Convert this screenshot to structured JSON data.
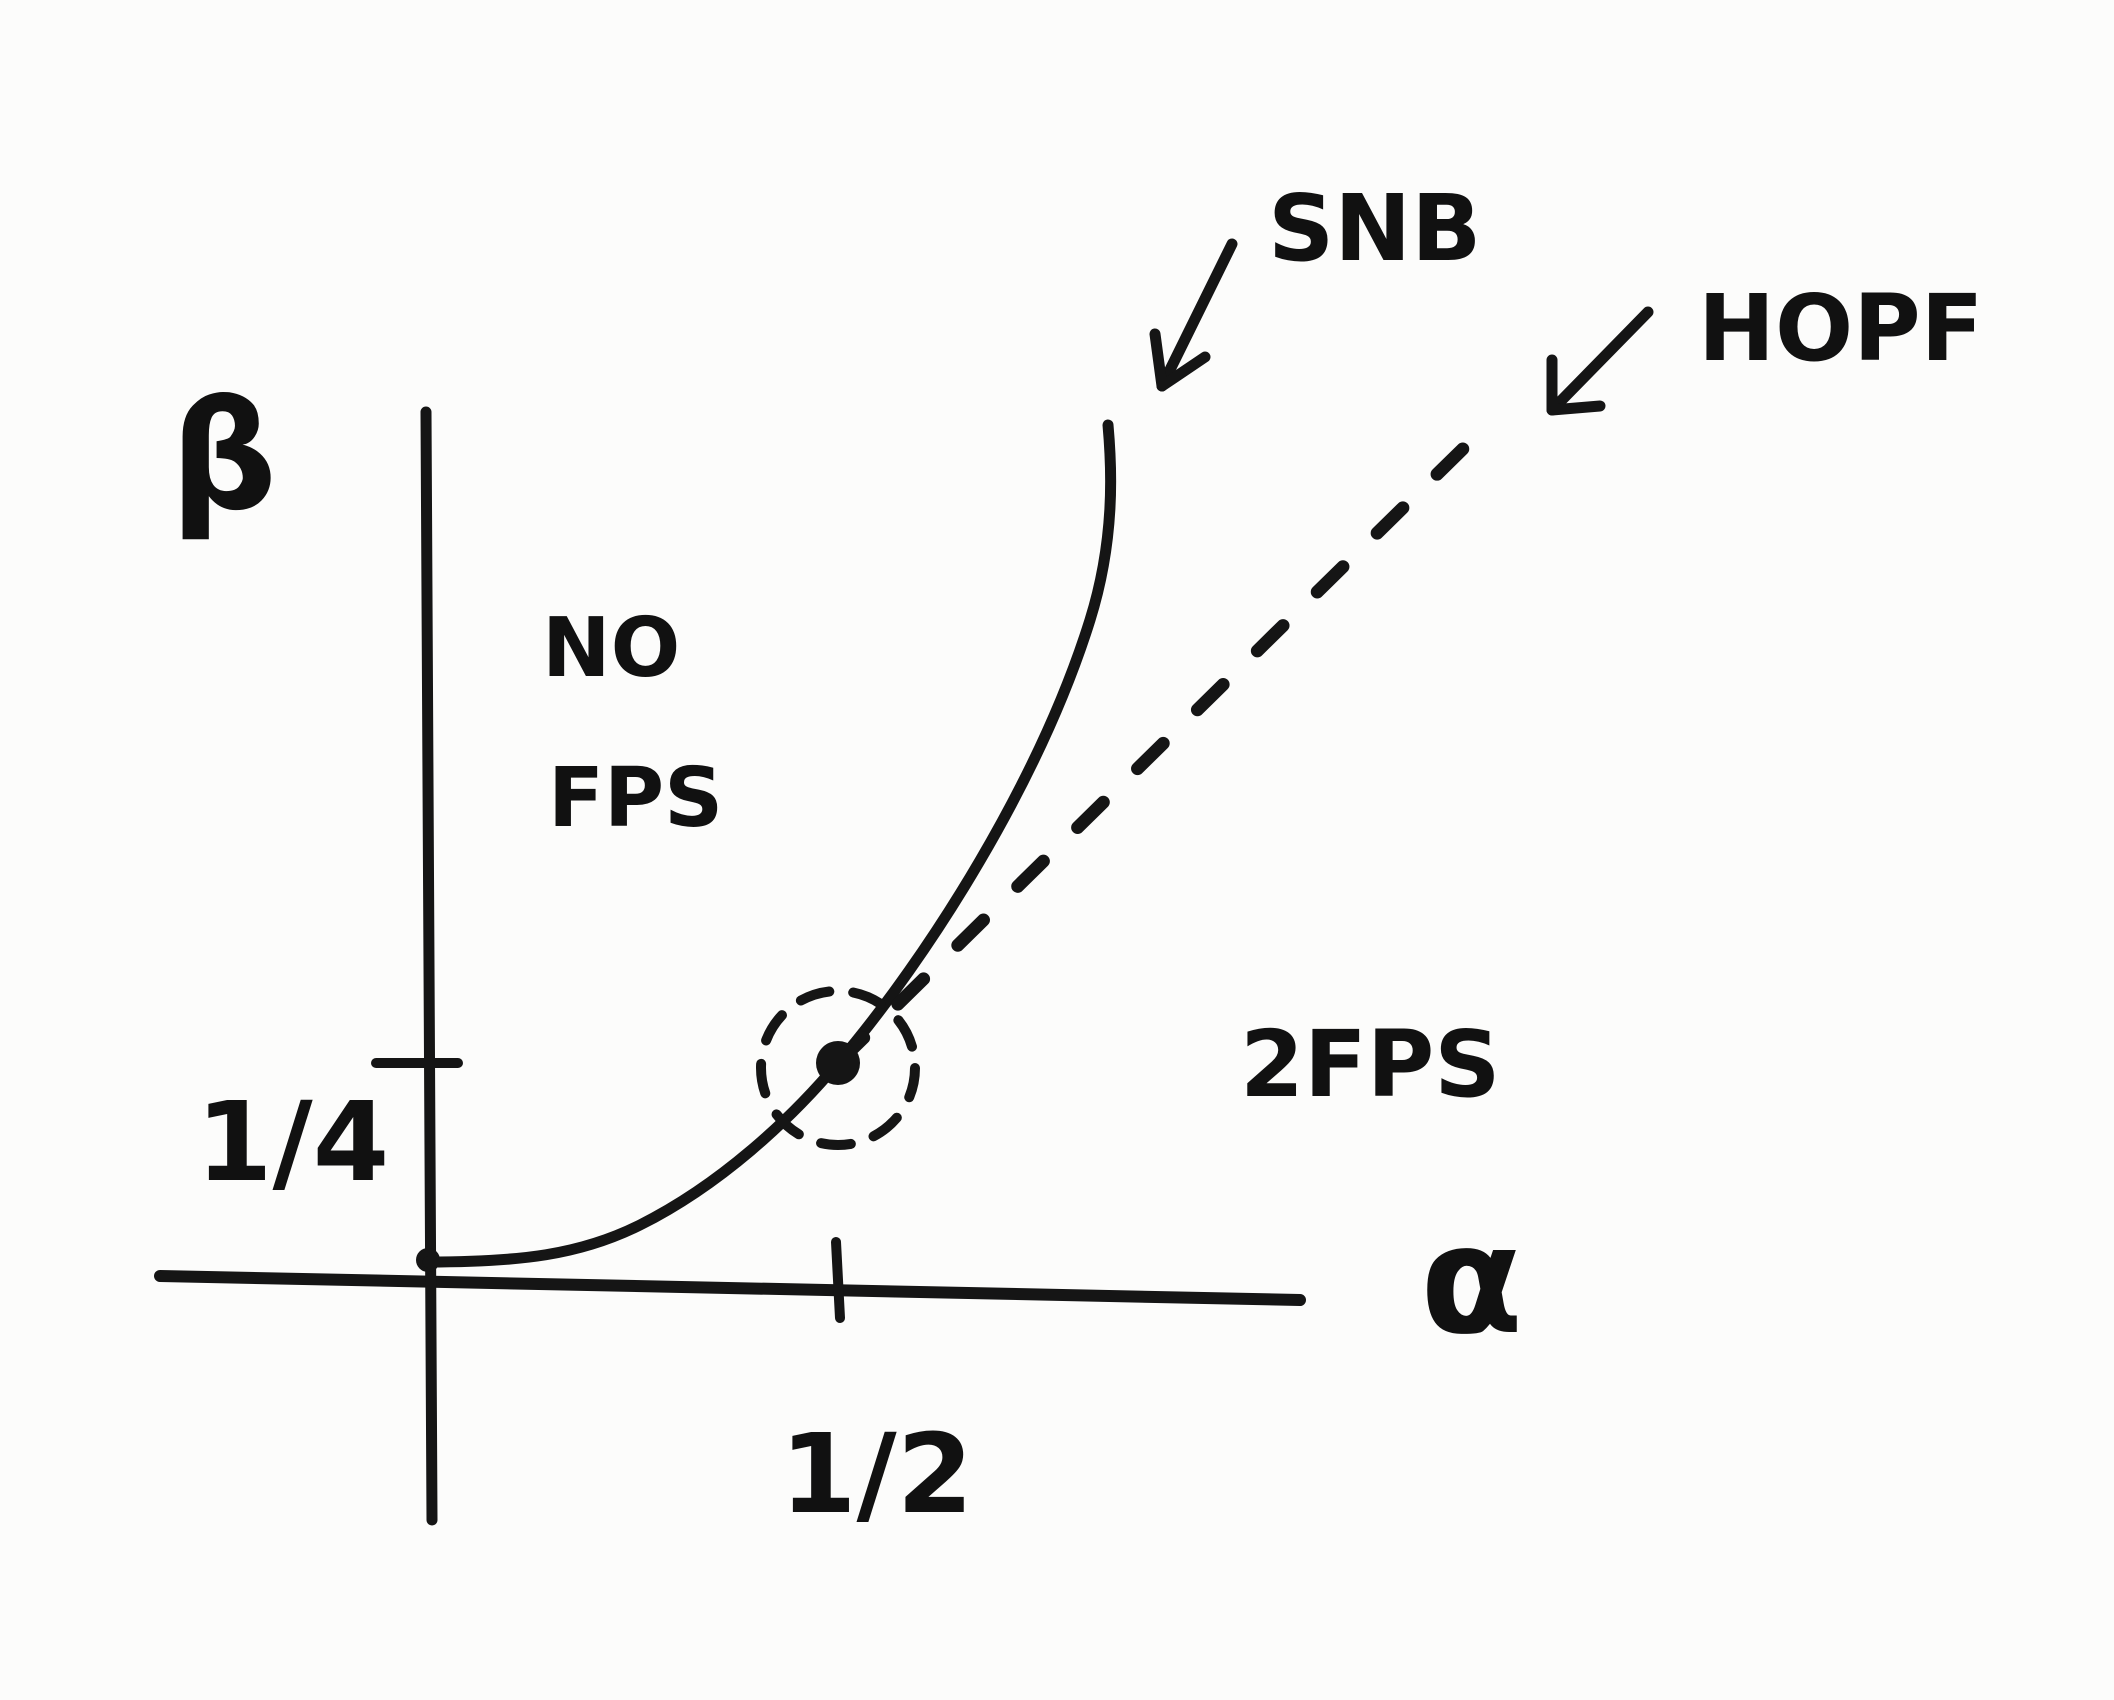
{
  "diagram": {
    "axes": {
      "y_label": "β",
      "x_label": "α",
      "y_tick_label": "1/4",
      "x_tick_label": "1/2"
    },
    "curves": {
      "snb_label": "SNB",
      "hopf_label": "HOPF"
    },
    "regions": {
      "upper_left_line1": "NO",
      "upper_left_line2": "FPS",
      "lower_right": "2FPS"
    },
    "colors": {
      "ink": "#151515",
      "paper": "#fcfcfb"
    }
  }
}
